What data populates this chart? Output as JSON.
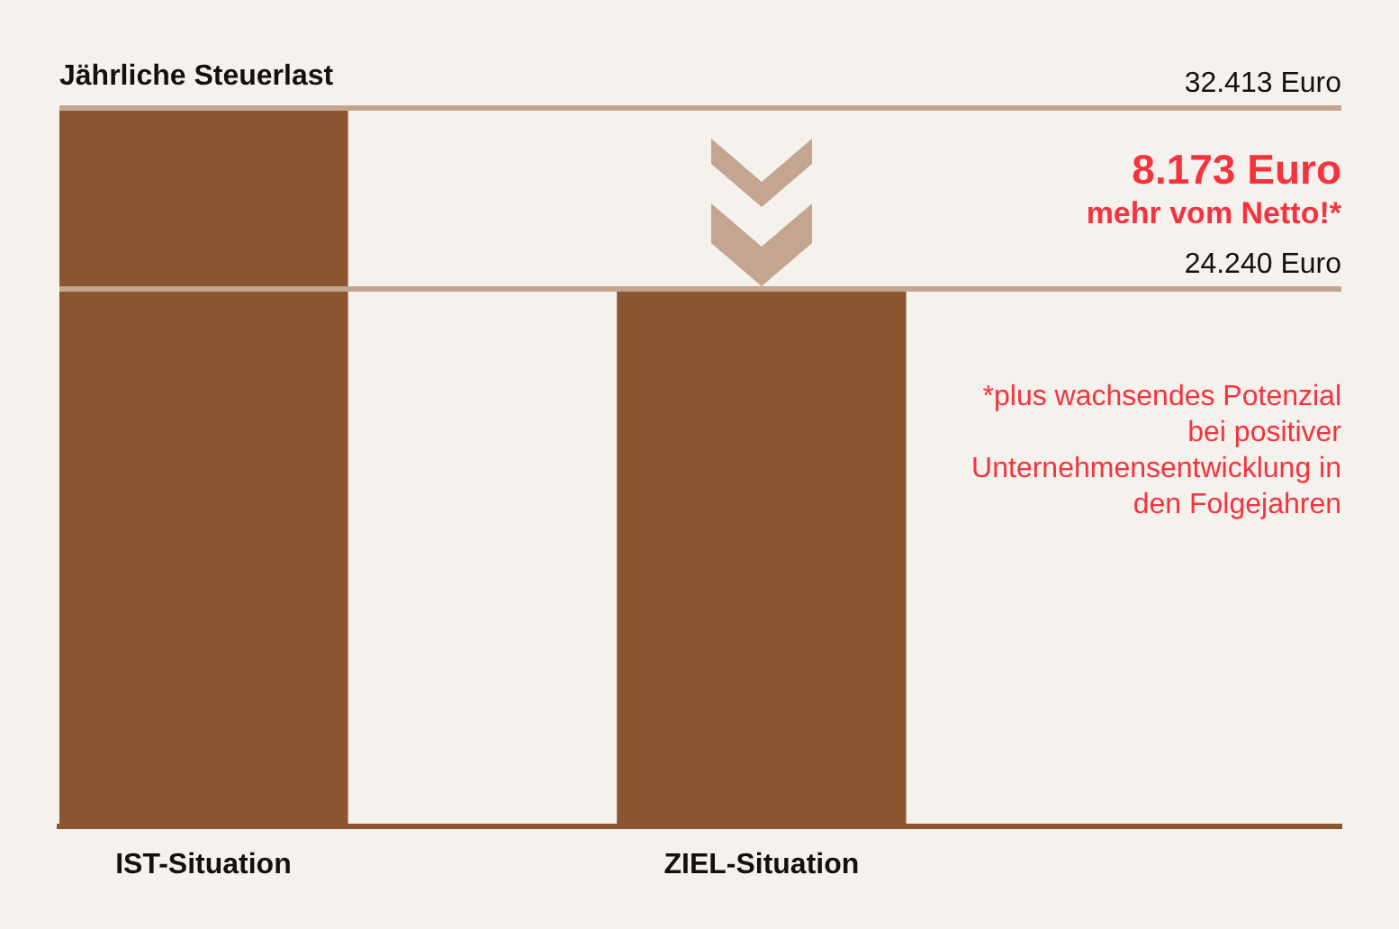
{
  "chart_data": {
    "type": "bar",
    "title": "Jährliche Steuerlast",
    "categories": [
      "IST-Situation",
      "ZIEL-Situation"
    ],
    "values": [
      32413,
      24240
    ],
    "color": "#8b5530",
    "ylim": [
      0,
      32413
    ],
    "tick_labels": "x",
    "grid": false,
    "legend": false,
    "ref_lines": [
      {
        "axis": "y",
        "value": 32413,
        "label": "32.413 Euro",
        "color": "#c4a590"
      },
      {
        "axis": "y",
        "value": 24240,
        "label": "24.240 Euro",
        "color": "#c4a590"
      }
    ],
    "annotations": [
      "8.173 Euro",
      "mehr vom Netto!*",
      "*plus wachsendes Potenzial bei positiver Unternehmensentwicklung in den Folgejahren"
    ]
  }
}
